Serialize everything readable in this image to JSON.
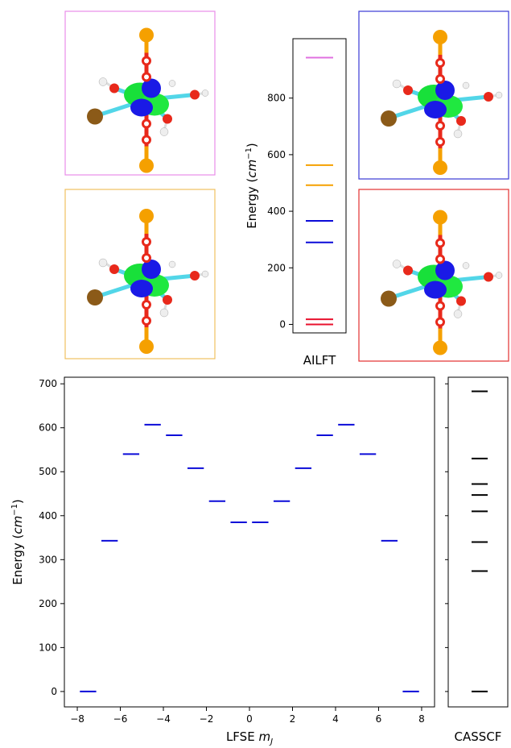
{
  "chart_data": [
    {
      "type": "energy-level",
      "panel": "AILFT",
      "title": "",
      "xlabel": "AILFT",
      "ylabel": "Energy (cm⁻¹)",
      "ylim": [
        -30,
        1010
      ],
      "yticks": [
        0,
        200,
        400,
        600,
        800
      ],
      "grid": false,
      "legend": "none",
      "levels": [
        {
          "value": 0,
          "color": "#e8112d"
        },
        {
          "value": 18,
          "color": "#e8112d"
        },
        {
          "value": 290,
          "color": "#0b0bd8"
        },
        {
          "value": 366,
          "color": "#0b0bd8"
        },
        {
          "value": 492,
          "color": "#f5a000"
        },
        {
          "value": 563,
          "color": "#f5a000"
        },
        {
          "value": 943,
          "color": "#e070e0"
        }
      ]
    },
    {
      "type": "energy-level",
      "panel": "LFSE",
      "title": "",
      "xlabel": "LFSE m_J",
      "ylabel": "Energy (cm⁻¹)",
      "xlim": [
        -8.6,
        8.6
      ],
      "xticks": [
        -8,
        -6,
        -4,
        -2,
        0,
        2,
        4,
        6,
        8
      ],
      "ylim": [
        -35,
        715
      ],
      "yticks": [
        0,
        100,
        200,
        300,
        400,
        500,
        600,
        700
      ],
      "grid": false,
      "legend": "none",
      "color": "#0b0bd8",
      "series": [
        {
          "mj": [
            -7.5,
            -6.5,
            -5.5,
            -4.5,
            -3.5,
            -2.5,
            -1.5,
            -0.5,
            0.5,
            1.5,
            2.5,
            3.5,
            4.5,
            5.5,
            6.5,
            7.5
          ],
          "values": [
            0,
            343,
            540,
            607,
            583,
            508,
            433,
            385,
            385,
            433,
            508,
            583,
            607,
            540,
            343,
            0
          ]
        }
      ]
    },
    {
      "type": "energy-level",
      "panel": "CASSCF",
      "title": "",
      "xlabel": "CASSCF",
      "ylim": [
        -35,
        715
      ],
      "grid": false,
      "legend": "none",
      "color": "#000000",
      "levels": [
        0,
        274,
        340,
        410,
        447,
        472,
        530,
        683
      ]
    }
  ],
  "orbital_images": [
    {
      "position": "top-left",
      "frame_color": "#e88ee8",
      "icon": "orbital-render-icon"
    },
    {
      "position": "top-right",
      "frame_color": "#3a3ad6",
      "icon": "orbital-render-icon"
    },
    {
      "position": "bottom-left",
      "frame_color": "#f0c060",
      "icon": "orbital-render-icon"
    },
    {
      "position": "bottom-right",
      "frame_color": "#e23030",
      "icon": "orbital-render-icon"
    }
  ]
}
